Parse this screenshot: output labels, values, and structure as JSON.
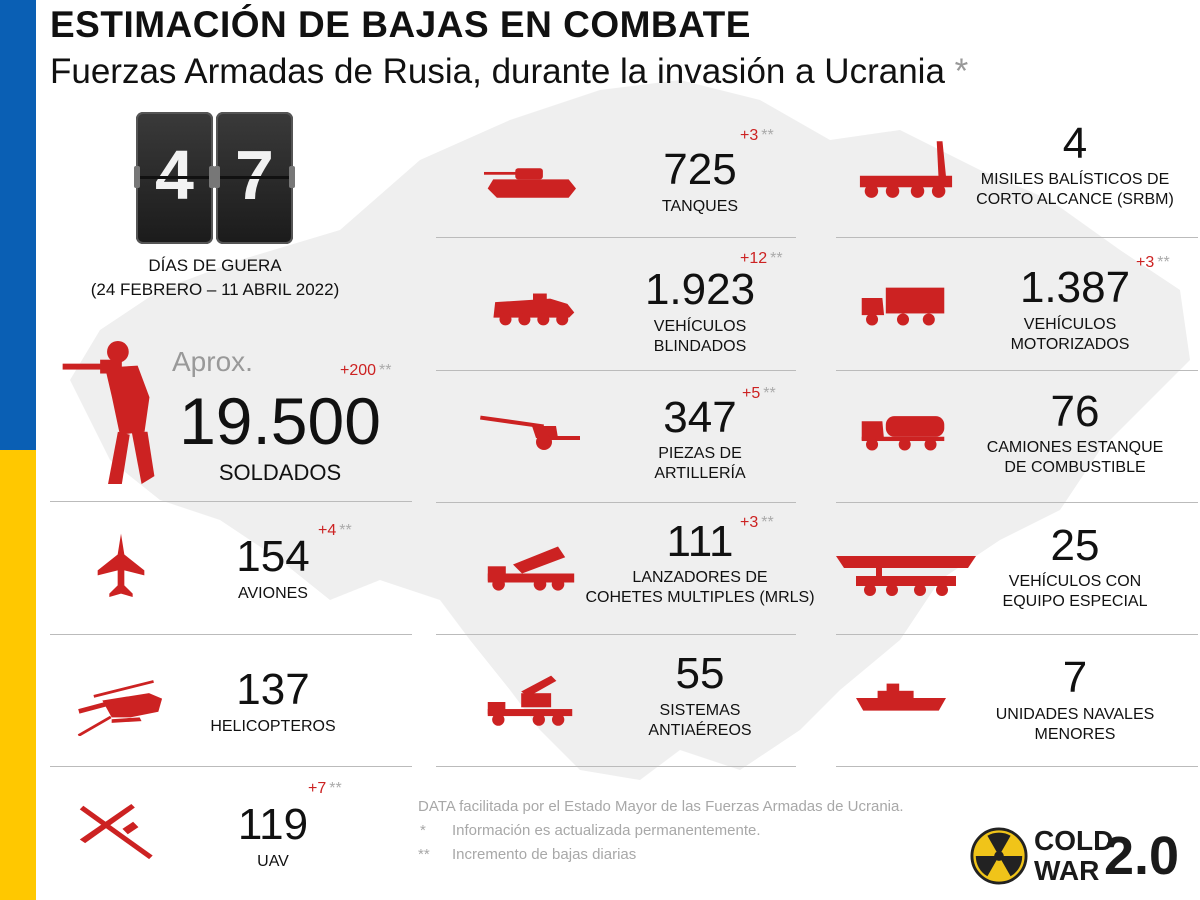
{
  "header": {
    "title": "ESTIMACIÓN DE BAJAS EN COMBATE",
    "subtitle": "Fuerzas Armadas de Rusia, durante la invasión a Ucrania",
    "subtitle_star": "*"
  },
  "days": {
    "digit1": "4",
    "digit2": "7",
    "label": "DÍAS DE GUERA",
    "range": "(24 FEBRERO – 11 ABRIL 2022)"
  },
  "soldiers": {
    "prefix": "Aprox.",
    "value": "19.500",
    "increment": "+200",
    "label": "SOLDADOS"
  },
  "stats": {
    "aviones": {
      "value": "154",
      "increment": "+4",
      "label1": "AVIONES"
    },
    "helicopteros": {
      "value": "137",
      "label1": "HELICOPTEROS"
    },
    "uav": {
      "value": "119",
      "increment": "+7",
      "label1": "UAV"
    },
    "tanques": {
      "value": "725",
      "increment": "+3",
      "label1": "TANQUES"
    },
    "blindados": {
      "value": "1.923",
      "increment": "+12",
      "label1": "VEHÍCULOS",
      "label2": "BLINDADOS"
    },
    "artilleria": {
      "value": "347",
      "increment": "+5",
      "label1": "PIEZAS DE",
      "label2": "ARTILLERÍA"
    },
    "mrls": {
      "value": "111",
      "increment": "+3",
      "label1": "LANZADORES DE",
      "label2": "COHETES MULTIPLES (MRLS)"
    },
    "antiaereos": {
      "value": "55",
      "label1": "SISTEMAS",
      "label2": "ANTIAÉREOS"
    },
    "srbm": {
      "value": "4",
      "label1": "MISILES BALÍSTICOS DE",
      "label2": "CORTO ALCANCE (SRBM)"
    },
    "motorizados": {
      "value": "1.387",
      "increment": "+3",
      "label1": "VEHÍCULOS",
      "label2": "MOTORIZADOS"
    },
    "combustible": {
      "value": "76",
      "label1": "CAMIONES ESTANQUE",
      "label2": "DE COMBUSTIBLE"
    },
    "especial": {
      "value": "25",
      "label1": "VEHÍCULOS CON",
      "label2": "EQUIPO ESPECIAL"
    },
    "navales": {
      "value": "7",
      "label1": "UNIDADES NAVALES",
      "label2": "MENORES"
    }
  },
  "increment_marker": "**",
  "notes": {
    "source": "DATA facilitada por el Estado Mayor de las Fuerzas Armadas de Ucrania.",
    "note1_mark": "*",
    "note1_text": "Información es actualizada permanentemente.",
    "note2_mark": "**",
    "note2_text": "Incremento de bajas diarias"
  },
  "logo": {
    "line1": "COLD",
    "line2": "WAR",
    "version": "2.0"
  },
  "colors": {
    "accent_red": "#cc2222",
    "flag_blue": "#0a5fb4",
    "flag_yellow": "#ffc800",
    "map_gray": "#efefef"
  },
  "icons": [
    "soldier-icon",
    "fighter-jet-icon",
    "helicopter-icon",
    "drone-icon",
    "tank-icon",
    "armored-vehicle-icon",
    "howitzer-icon",
    "rocket-launcher-icon",
    "anti-aircraft-icon",
    "missile-launcher-icon",
    "military-truck-icon",
    "fuel-truck-icon",
    "bridge-layer-icon",
    "patrol-boat-icon",
    "radiation-icon"
  ]
}
